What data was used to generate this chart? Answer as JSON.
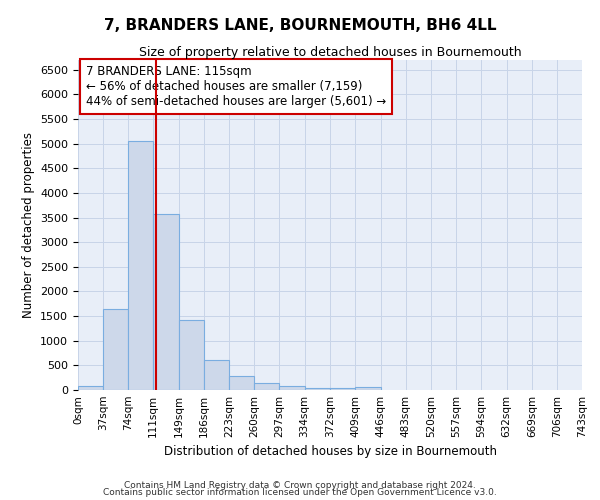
{
  "title": "7, BRANDERS LANE, BOURNEMOUTH, BH6 4LL",
  "subtitle": "Size of property relative to detached houses in Bournemouth",
  "xlabel": "Distribution of detached houses by size in Bournemouth",
  "ylabel": "Number of detached properties",
  "bar_color": "#cdd8ea",
  "bar_edge_color": "#7aade0",
  "bin_edges": [
    0,
    37,
    74,
    111,
    149,
    186,
    223,
    260,
    297,
    334,
    372,
    409,
    446,
    483,
    520,
    557,
    594,
    632,
    669,
    706,
    743
  ],
  "bin_labels": [
    "0sqm",
    "37sqm",
    "74sqm",
    "111sqm",
    "149sqm",
    "186sqm",
    "223sqm",
    "260sqm",
    "297sqm",
    "334sqm",
    "372sqm",
    "409sqm",
    "446sqm",
    "483sqm",
    "520sqm",
    "557sqm",
    "594sqm",
    "632sqm",
    "669sqm",
    "706sqm",
    "743sqm"
  ],
  "bar_heights": [
    75,
    1650,
    5050,
    3580,
    1420,
    610,
    290,
    145,
    80,
    50,
    48,
    58,
    0,
    0,
    0,
    0,
    0,
    0,
    0,
    0
  ],
  "red_line_x": 115,
  "ylim": [
    0,
    6700
  ],
  "yticks": [
    0,
    500,
    1000,
    1500,
    2000,
    2500,
    3000,
    3500,
    4000,
    4500,
    5000,
    5500,
    6000,
    6500
  ],
  "annotation_title": "7 BRANDERS LANE: 115sqm",
  "annotation_line1": "← 56% of detached houses are smaller (7,159)",
  "annotation_line2": "44% of semi-detached houses are larger (5,601) →",
  "annotation_box_color": "#ffffff",
  "annotation_border_color": "#cc0000",
  "red_line_color": "#cc0000",
  "grid_color": "#c8d4e8",
  "ax_background_color": "#e8eef8",
  "fig_background_color": "#ffffff",
  "footer_line1": "Contains HM Land Registry data © Crown copyright and database right 2024.",
  "footer_line2": "Contains public sector information licensed under the Open Government Licence v3.0."
}
